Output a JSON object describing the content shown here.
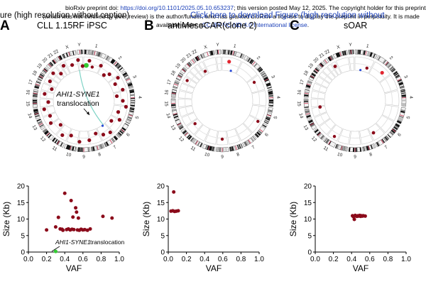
{
  "banner": {
    "overlay_title_left": "ure (high resolution without caption)",
    "overlay_title_right": "Click here to download Figure (high resolution without",
    "line1_pre": "bioRxiv preprint doi: ",
    "line1_link": "https://doi.org/10.1101/2025.05.10.653237",
    "line1_post": "; this version posted May 12, 2025. The copyright holder for this preprint",
    "line2": "(which was not certified by peer review) is the author/funder, who has granted bioRxiv a license to display the preprint in perpetuity. It is made",
    "line3_pre": "available under a",
    "line3_link": "CC-BY-NC-ND 4.0 International license",
    "line3_post": "."
  },
  "panels": [
    {
      "letter": "A",
      "title": "CLL 1.15RF iPSC"
    },
    {
      "letter": "B",
      "title": "antiMesoCAR(clone 2)"
    },
    {
      "letter": "C",
      "title": "sOAR"
    }
  ],
  "chromosomes": [
    "1",
    "2",
    "3",
    "4",
    "5",
    "6",
    "7",
    "8",
    "9",
    "10",
    "11",
    "12",
    "13",
    "14",
    "15",
    "16",
    "17",
    "18",
    "19",
    "20",
    "21",
    "22",
    "X",
    "Y"
  ],
  "annotation": {
    "circos_label_italic": "AHI1-SYNE1",
    "circos_label": "translocation",
    "scatter_label_italic": "AHI1-SYNE1",
    "scatter_label": "translocation"
  },
  "colors": {
    "dot": "#8b0a1a",
    "dot_bright": "#e2252f",
    "highlight": "#33cc33",
    "link": "#1a3fb8"
  },
  "chart_data": [
    {
      "type": "scatter",
      "panel": "A",
      "xlabel": "VAF",
      "ylabel": "Size (Kb)",
      "xlim": [
        0,
        1.0
      ],
      "ylim": [
        0,
        20
      ],
      "xticks": [
        "0.0",
        "0.2",
        "0.4",
        "0.6",
        "0.8",
        "1.0"
      ],
      "yticks": [
        "0",
        "5",
        "10",
        "15",
        "20"
      ],
      "points": [
        {
          "x": 0.2,
          "y": 6.7
        },
        {
          "x": 0.3,
          "y": 7.6
        },
        {
          "x": 0.33,
          "y": 10.5
        },
        {
          "x": 0.35,
          "y": 7.0
        },
        {
          "x": 0.37,
          "y": 6.9
        },
        {
          "x": 0.38,
          "y": 6.6
        },
        {
          "x": 0.4,
          "y": 17.8
        },
        {
          "x": 0.42,
          "y": 6.8
        },
        {
          "x": 0.44,
          "y": 7.0
        },
        {
          "x": 0.46,
          "y": 6.7
        },
        {
          "x": 0.47,
          "y": 15.6
        },
        {
          "x": 0.48,
          "y": 6.9
        },
        {
          "x": 0.49,
          "y": 10.6
        },
        {
          "x": 0.5,
          "y": 6.8
        },
        {
          "x": 0.52,
          "y": 13.4
        },
        {
          "x": 0.53,
          "y": 12.1
        },
        {
          "x": 0.54,
          "y": 6.7
        },
        {
          "x": 0.55,
          "y": 10.3
        },
        {
          "x": 0.56,
          "y": 6.6
        },
        {
          "x": 0.58,
          "y": 6.9
        },
        {
          "x": 0.6,
          "y": 6.7
        },
        {
          "x": 0.62,
          "y": 6.8
        },
        {
          "x": 0.65,
          "y": 6.6
        },
        {
          "x": 0.68,
          "y": 7.0
        },
        {
          "x": 0.82,
          "y": 10.8
        },
        {
          "x": 0.92,
          "y": 10.3
        }
      ],
      "highlight_point": {
        "x": 0.3,
        "y": 0.2
      }
    },
    {
      "type": "scatter",
      "panel": "B",
      "xlabel": "VAF",
      "ylabel": "Size (Kb)",
      "xlim": [
        0,
        1.0
      ],
      "ylim": [
        0,
        20
      ],
      "xticks": [
        "0.0",
        "0.2",
        "0.4",
        "0.6",
        "0.8",
        "1.0"
      ],
      "yticks": [
        "0",
        "5",
        "10",
        "15",
        "20"
      ],
      "points": [
        {
          "x": 0.03,
          "y": 12.4
        },
        {
          "x": 0.05,
          "y": 12.5
        },
        {
          "x": 0.06,
          "y": 18.2
        },
        {
          "x": 0.07,
          "y": 12.3
        },
        {
          "x": 0.09,
          "y": 12.4
        },
        {
          "x": 0.11,
          "y": 12.5
        }
      ]
    },
    {
      "type": "scatter",
      "panel": "C",
      "xlabel": "VAF",
      "ylabel": "Size (Kb)",
      "xlim": [
        0,
        1.0
      ],
      "ylim": [
        0,
        20
      ],
      "xticks": [
        "0.0",
        "0.2",
        "0.4",
        "0.6",
        "0.8",
        "1.0"
      ],
      "yticks": [
        "0",
        "5",
        "10",
        "15",
        "20"
      ],
      "points": [
        {
          "x": 0.41,
          "y": 11.0
        },
        {
          "x": 0.42,
          "y": 10.7
        },
        {
          "x": 0.43,
          "y": 9.9
        },
        {
          "x": 0.44,
          "y": 11.1
        },
        {
          "x": 0.45,
          "y": 10.9
        },
        {
          "x": 0.46,
          "y": 10.8
        },
        {
          "x": 0.47,
          "y": 11.0
        },
        {
          "x": 0.48,
          "y": 10.9
        },
        {
          "x": 0.49,
          "y": 11.1
        },
        {
          "x": 0.5,
          "y": 10.8
        },
        {
          "x": 0.51,
          "y": 11.0
        },
        {
          "x": 0.52,
          "y": 10.9
        },
        {
          "x": 0.53,
          "y": 11.0
        },
        {
          "x": 0.55,
          "y": 10.9
        }
      ]
    }
  ]
}
